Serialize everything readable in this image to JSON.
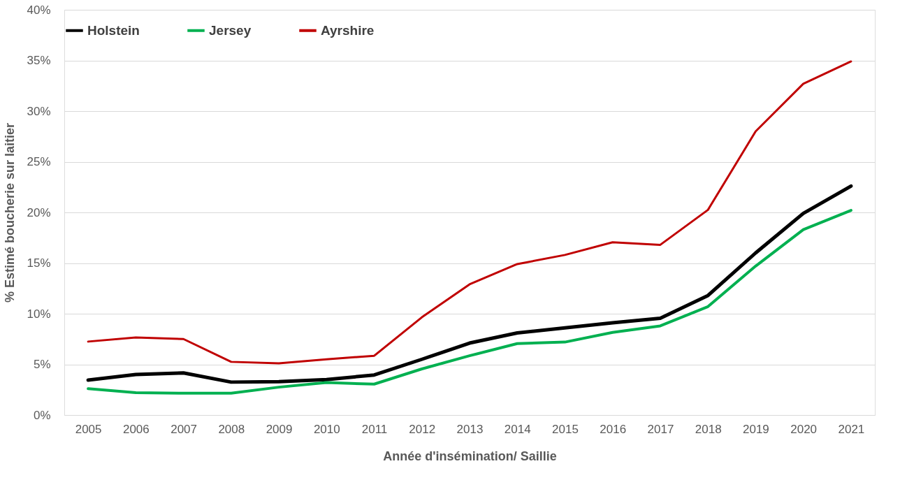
{
  "chart_data": {
    "type": "line",
    "xlabel": "Année  d'insémination/ Saillie",
    "ylabel": "% Estimé boucherie sur laitier",
    "categories": [
      "2005",
      "2006",
      "2007",
      "2008",
      "2009",
      "2010",
      "2011",
      "2012",
      "2013",
      "2014",
      "2015",
      "2016",
      "2017",
      "2018",
      "2019",
      "2020",
      "2021"
    ],
    "series": [
      {
        "name": "Holstein",
        "color": "#000000",
        "values": [
          3.45,
          4.0,
          4.15,
          3.25,
          3.3,
          3.5,
          3.95,
          5.5,
          7.1,
          8.1,
          8.6,
          9.1,
          9.55,
          11.8,
          16.0,
          19.9,
          22.6
        ]
      },
      {
        "name": "Jersey",
        "color": "#00b050",
        "values": [
          2.6,
          2.2,
          2.15,
          2.15,
          2.75,
          3.2,
          3.05,
          4.55,
          5.85,
          7.05,
          7.2,
          8.15,
          8.8,
          10.7,
          14.7,
          18.3,
          20.2
        ]
      },
      {
        "name": "Ayrshire",
        "color": "#c00000",
        "values": [
          7.25,
          7.65,
          7.5,
          5.25,
          5.1,
          5.5,
          5.85,
          9.65,
          12.9,
          14.9,
          15.8,
          17.05,
          16.8,
          20.25,
          28.0,
          32.7,
          34.9
        ]
      }
    ],
    "ylim": [
      0,
      40
    ],
    "yticks": [
      {
        "value": 0,
        "label": "0%"
      },
      {
        "value": 5,
        "label": "5%"
      },
      {
        "value": 10,
        "label": "10%"
      },
      {
        "value": 15,
        "label": "15%"
      },
      {
        "value": 20,
        "label": "20%"
      },
      {
        "value": 25,
        "label": "25%"
      },
      {
        "value": 30,
        "label": "30%"
      },
      {
        "value": 35,
        "label": "35%"
      },
      {
        "value": 40,
        "label": "40%"
      }
    ],
    "grid": "y",
    "legend": "top",
    "marker": "none",
    "line_style": "solid"
  }
}
